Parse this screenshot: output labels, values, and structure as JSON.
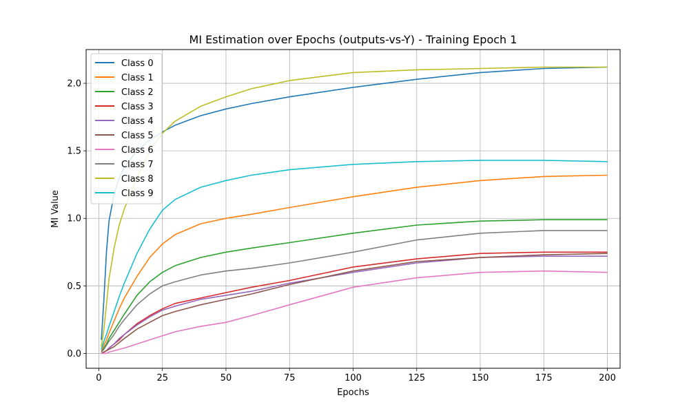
{
  "chart_data": {
    "type": "line",
    "title": "MI Estimation over Epochs (outputs-vs-Y) - Training Epoch 1",
    "xlabel": "Epochs",
    "ylabel": "MI Value",
    "xlim": [
      -5,
      205
    ],
    "ylim": [
      -0.11,
      2.25
    ],
    "xticks": [
      0,
      25,
      50,
      75,
      100,
      125,
      150,
      175,
      200
    ],
    "yticks": [
      0.0,
      0.5,
      1.0,
      1.5,
      2.0
    ],
    "xtick_labels": [
      "0",
      "25",
      "50",
      "75",
      "100",
      "125",
      "150",
      "175",
      "200"
    ],
    "ytick_labels": [
      "0.0",
      "0.5",
      "1.0",
      "1.5",
      "2.0"
    ],
    "grid": true,
    "legend_position": "upper-left",
    "x_key_epochs": [
      1,
      2,
      3,
      4,
      6,
      8,
      10,
      15,
      20,
      25,
      30,
      40,
      50,
      60,
      75,
      100,
      125,
      150,
      175,
      200
    ],
    "series": [
      {
        "name": "Class 0",
        "color": "#1f77b4",
        "values": [
          0.1,
          0.4,
          0.75,
          0.98,
          1.18,
          1.3,
          1.38,
          1.5,
          1.58,
          1.64,
          1.69,
          1.76,
          1.81,
          1.85,
          1.9,
          1.97,
          2.03,
          2.08,
          2.11,
          2.12
        ]
      },
      {
        "name": "Class 1",
        "color": "#ff7f0e",
        "values": [
          0.02,
          0.06,
          0.1,
          0.15,
          0.24,
          0.33,
          0.41,
          0.57,
          0.71,
          0.81,
          0.88,
          0.96,
          1.0,
          1.03,
          1.08,
          1.16,
          1.23,
          1.28,
          1.31,
          1.32
        ]
      },
      {
        "name": "Class 2",
        "color": "#2ca02c",
        "values": [
          0.01,
          0.04,
          0.07,
          0.11,
          0.17,
          0.23,
          0.29,
          0.43,
          0.53,
          0.6,
          0.65,
          0.71,
          0.75,
          0.78,
          0.82,
          0.89,
          0.95,
          0.98,
          0.99,
          0.99
        ]
      },
      {
        "name": "Class 3",
        "color": "#d62728",
        "values": [
          0.0,
          0.01,
          0.02,
          0.04,
          0.07,
          0.1,
          0.14,
          0.22,
          0.28,
          0.33,
          0.37,
          0.41,
          0.45,
          0.49,
          0.54,
          0.64,
          0.7,
          0.74,
          0.75,
          0.75
        ]
      },
      {
        "name": "Class 4",
        "color": "#9467bd",
        "values": [
          0.0,
          0.01,
          0.02,
          0.04,
          0.07,
          0.11,
          0.14,
          0.21,
          0.27,
          0.32,
          0.35,
          0.4,
          0.43,
          0.46,
          0.52,
          0.6,
          0.67,
          0.71,
          0.72,
          0.72
        ]
      },
      {
        "name": "Class 5",
        "color": "#8c564b",
        "values": [
          0.0,
          0.01,
          0.02,
          0.03,
          0.05,
          0.08,
          0.11,
          0.18,
          0.23,
          0.28,
          0.31,
          0.36,
          0.4,
          0.44,
          0.51,
          0.61,
          0.68,
          0.71,
          0.73,
          0.74
        ]
      },
      {
        "name": "Class 6",
        "color": "#e377c2",
        "values": [
          0.0,
          0.0,
          0.0,
          0.01,
          0.02,
          0.03,
          0.04,
          0.07,
          0.1,
          0.13,
          0.16,
          0.2,
          0.23,
          0.28,
          0.36,
          0.49,
          0.56,
          0.6,
          0.61,
          0.6
        ]
      },
      {
        "name": "Class 7",
        "color": "#7f7f7f",
        "values": [
          0.01,
          0.03,
          0.06,
          0.09,
          0.14,
          0.2,
          0.25,
          0.36,
          0.44,
          0.5,
          0.53,
          0.58,
          0.61,
          0.63,
          0.67,
          0.75,
          0.84,
          0.89,
          0.91,
          0.91
        ]
      },
      {
        "name": "Class 8",
        "color": "#bcbd22",
        "values": [
          0.05,
          0.18,
          0.36,
          0.55,
          0.78,
          0.95,
          1.07,
          1.3,
          1.5,
          1.63,
          1.72,
          1.83,
          1.9,
          1.96,
          2.02,
          2.08,
          2.1,
          2.11,
          2.12,
          2.12
        ]
      },
      {
        "name": "Class 9",
        "color": "#17becf",
        "values": [
          0.03,
          0.09,
          0.14,
          0.2,
          0.31,
          0.42,
          0.52,
          0.74,
          0.92,
          1.06,
          1.14,
          1.23,
          1.28,
          1.32,
          1.36,
          1.4,
          1.42,
          1.43,
          1.43,
          1.42
        ]
      }
    ]
  }
}
